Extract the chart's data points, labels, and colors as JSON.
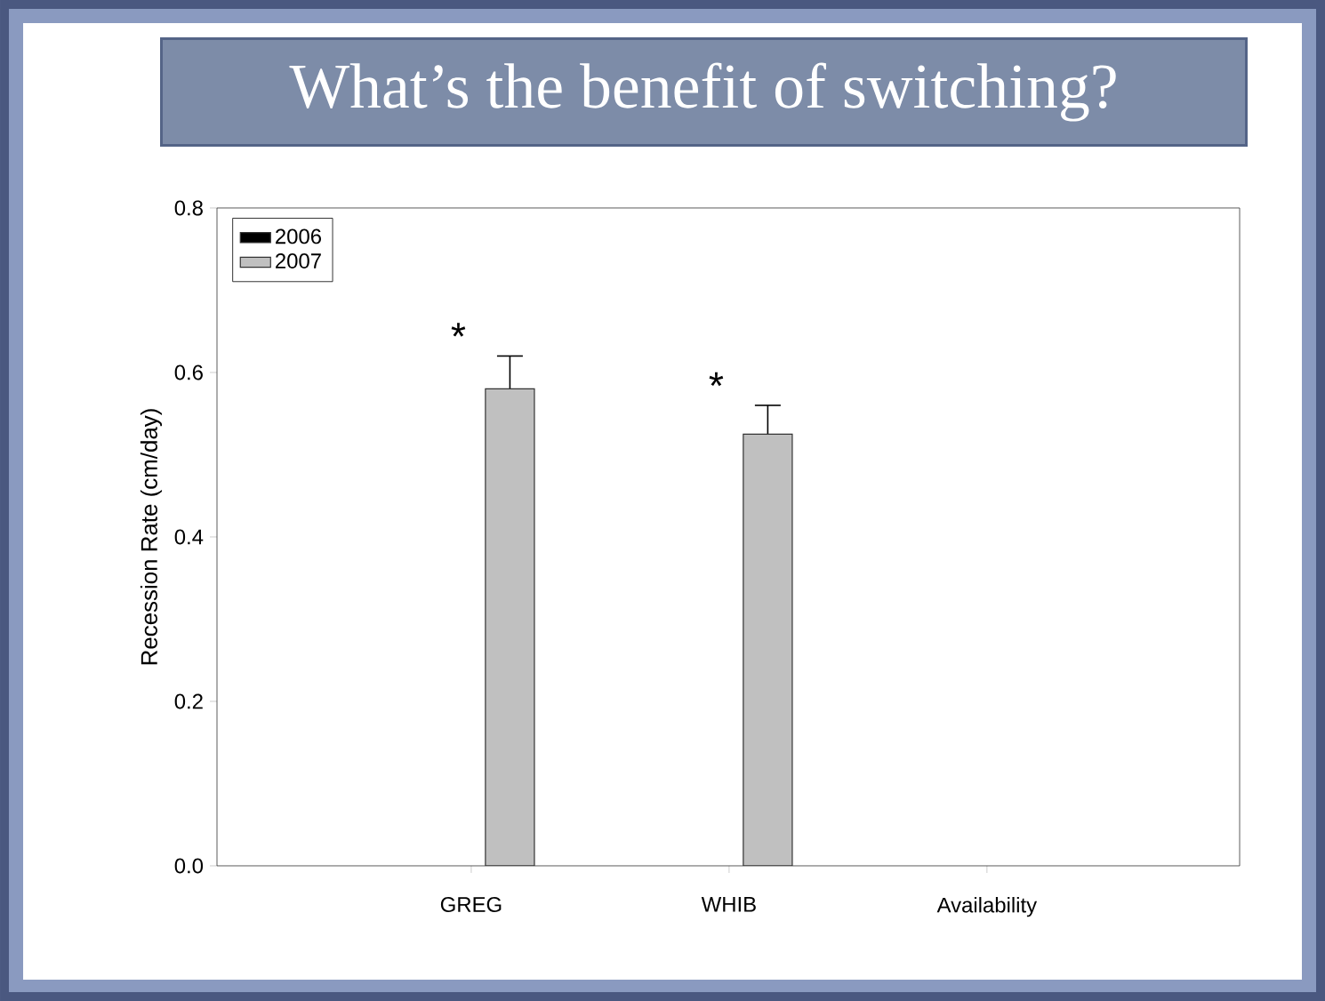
{
  "chart_data": {
    "type": "bar",
    "ylabel": "Recession Rate (cm/day)",
    "categories": [
      "GREG",
      "WHIB",
      "Availability"
    ],
    "series": [
      {
        "name": "2006",
        "color": "#000000",
        "values": [
          null,
          null,
          null
        ]
      },
      {
        "name": "2007",
        "color": "#c0c0c0",
        "values": [
          0.58,
          0.525,
          null
        ],
        "errors": [
          0.04,
          0.035,
          null
        ]
      }
    ],
    "ylim": [
      0,
      0.8
    ],
    "yticks": [
      {
        "value": 0,
        "label": "0.0"
      },
      0.2,
      0.4,
      0.6,
      0.8
    ],
    "legend": "top left",
    "annotations": [
      "*",
      "*",
      "What’s the benefit of switching?"
    ]
  }
}
